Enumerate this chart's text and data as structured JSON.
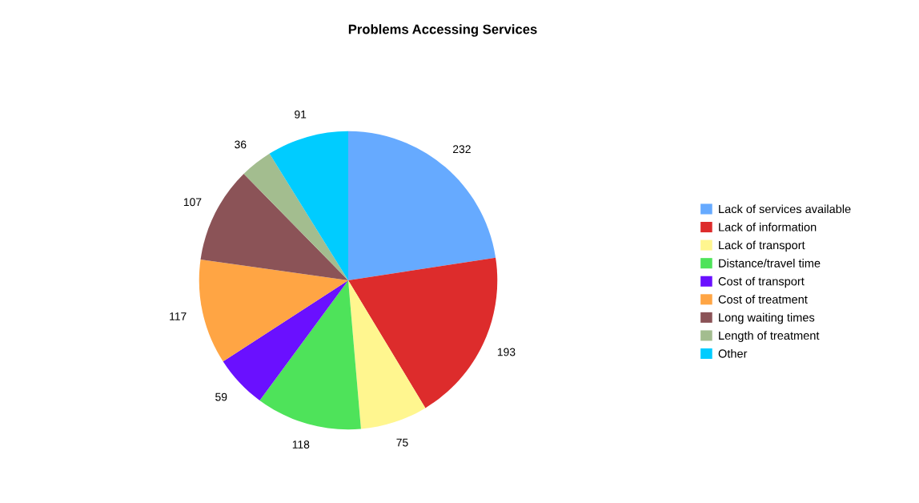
{
  "chart_data": {
    "type": "pie",
    "title": "Problems Accessing Services",
    "categories": [
      "Lack of services available",
      "Lack of information",
      "Lack of transport",
      "Distance/travel time",
      "Cost of transport",
      "Cost of treatment",
      "Long waiting times",
      "Length of treatment",
      "Other"
    ],
    "values": [
      232,
      193,
      75,
      118,
      59,
      117,
      107,
      36,
      91
    ],
    "colors": [
      "#66aaff",
      "#dd2c2c",
      "#fff68f",
      "#4ee35a",
      "#6a10ff",
      "#ffa544",
      "#8b5357",
      "#a3bd8f",
      "#00ccff"
    ],
    "data_labels": true,
    "legend": "right"
  }
}
